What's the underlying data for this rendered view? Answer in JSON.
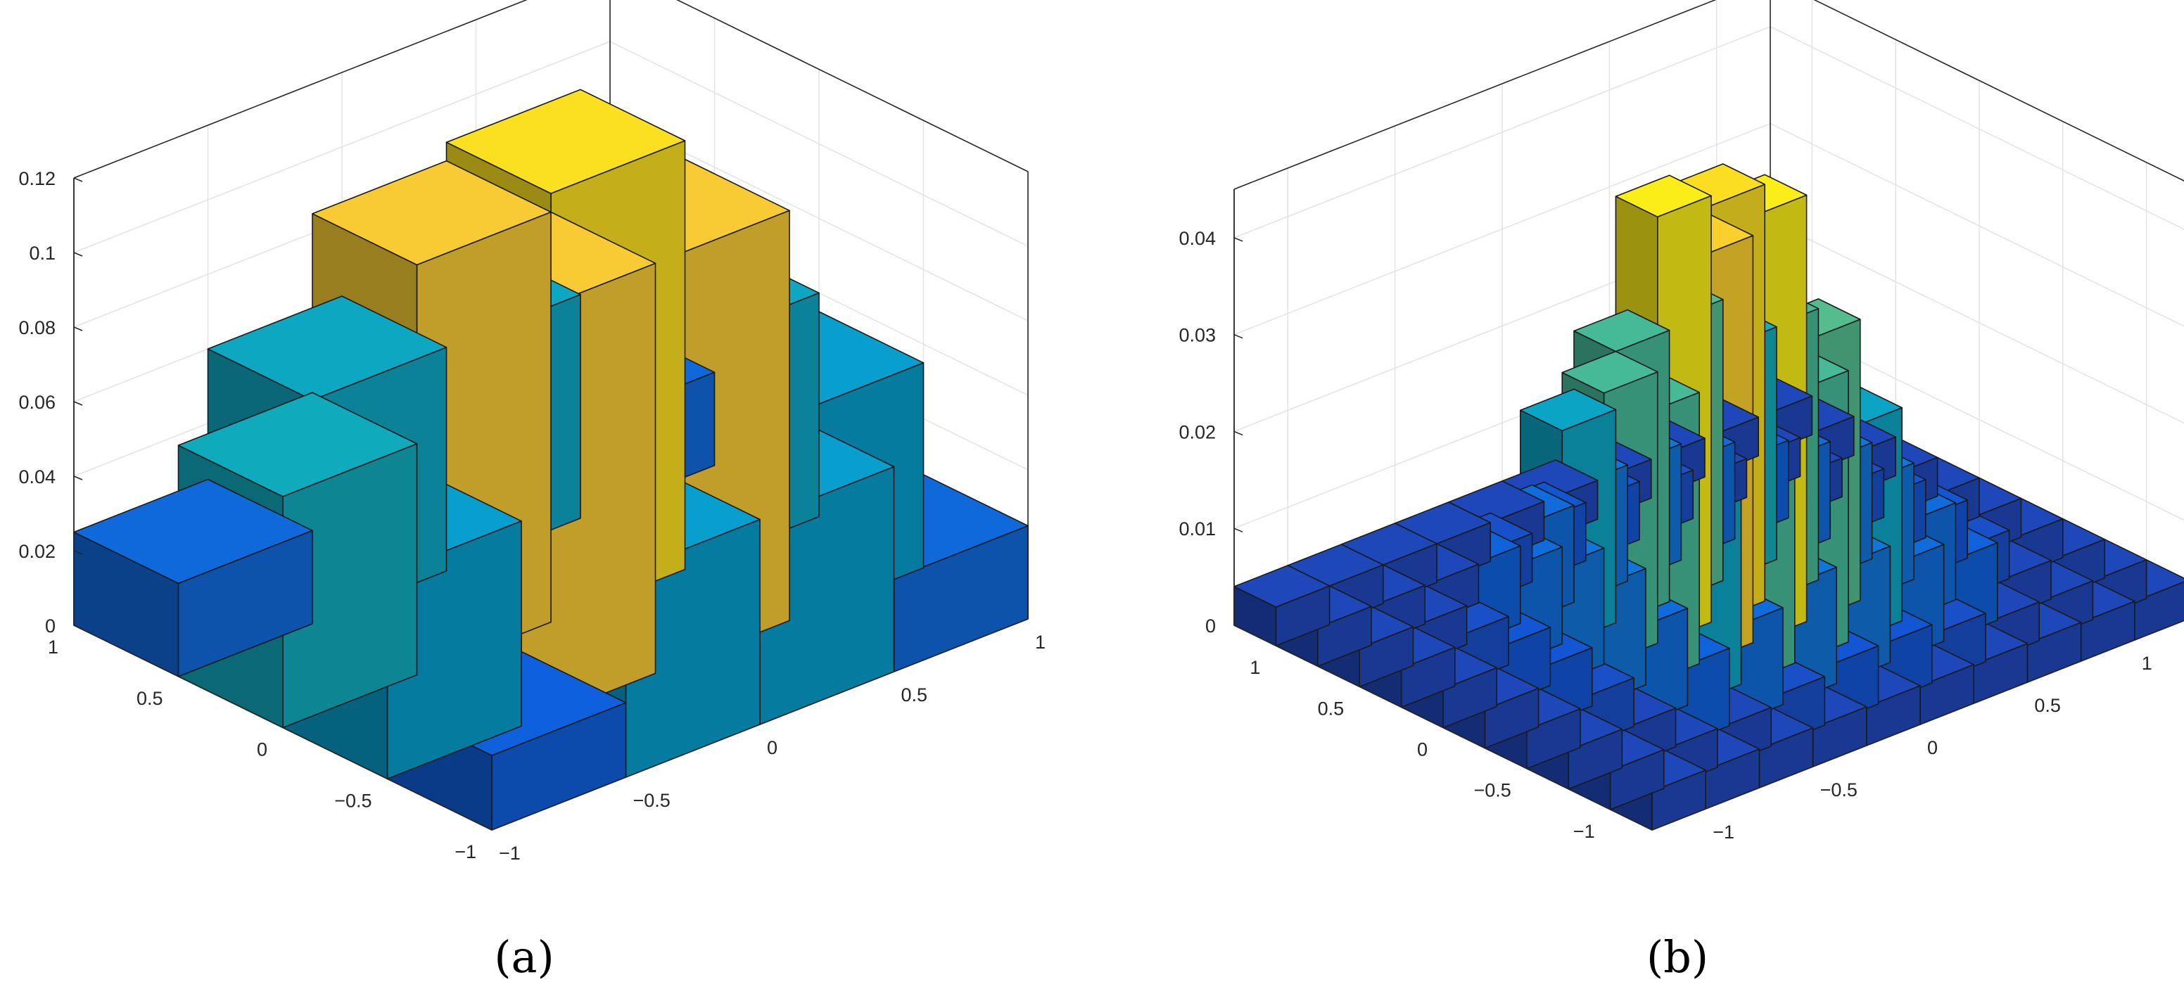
{
  "figure": {
    "captions": [
      "(a)",
      "(b)"
    ]
  },
  "chart_data": [
    {
      "type": "bar3",
      "label": "(a)",
      "colormap": "parula",
      "x_edges": [
        -1,
        -0.5,
        0,
        0.5,
        1
      ],
      "y_edges": [
        -1,
        -0.5,
        0,
        0.5,
        1
      ],
      "values": [
        [
          0.02,
          0.055,
          0.062,
          0.025
        ],
        [
          0.055,
          0.11,
          0.11,
          0.06
        ],
        [
          0.055,
          0.11,
          0.115,
          0.06
        ],
        [
          0.025,
          0.055,
          0.06,
          0.025
        ]
      ],
      "zlim": [
        0,
        0.12
      ],
      "xticks": [
        "−1",
        "−0.5",
        "0",
        "0.5",
        "1"
      ],
      "yticks": [
        "−1",
        "−0.5",
        "0",
        "0.5",
        "1"
      ],
      "zticks": [
        "0",
        "0.02",
        "0.04",
        "0.06",
        "0.08",
        "0.1",
        "0.12"
      ],
      "zvals": [
        0,
        0.02,
        0.04,
        0.06,
        0.08,
        0.1,
        0.12
      ],
      "grid": true,
      "xlabel": "",
      "ylabel": "",
      "zlabel": "",
      "title": ""
    },
    {
      "type": "bar3",
      "label": "(b)",
      "colormap": "parula",
      "x_edges": [
        -1.25,
        -1,
        -0.75,
        -0.5,
        -0.25,
        0,
        0.25,
        0.5,
        0.75,
        1,
        1.25
      ],
      "y_edges": [
        -1.25,
        -1,
        -0.75,
        -0.5,
        -0.25,
        0,
        0.25,
        0.5,
        0.75,
        1,
        1.25
      ],
      "values": [
        [
          0.004,
          0.004,
          0.004,
          0.004,
          0.004,
          0.004,
          0.004,
          0.004,
          0.004,
          0.004
        ],
        [
          0.004,
          0.004,
          0.004,
          0.005,
          0.006,
          0.006,
          0.005,
          0.004,
          0.004,
          0.004
        ],
        [
          0.004,
          0.004,
          0.008,
          0.01,
          0.012,
          0.012,
          0.01,
          0.008,
          0.004,
          0.004
        ],
        [
          0.004,
          0.005,
          0.01,
          0.022,
          0.028,
          0.028,
          0.022,
          0.01,
          0.005,
          0.004
        ],
        [
          0.004,
          0.006,
          0.012,
          0.028,
          0.042,
          0.044,
          0.028,
          0.012,
          0.006,
          0.004
        ],
        [
          0.004,
          0.006,
          0.012,
          0.028,
          0.044,
          0.043,
          0.029,
          0.012,
          0.006,
          0.004
        ],
        [
          0.004,
          0.005,
          0.01,
          0.022,
          0.029,
          0.028,
          0.024,
          0.01,
          0.005,
          0.004
        ],
        [
          0.004,
          0.004,
          0.008,
          0.01,
          0.012,
          0.012,
          0.01,
          0.008,
          0.004,
          0.004
        ],
        [
          0.004,
          0.004,
          0.004,
          0.005,
          0.006,
          0.006,
          0.005,
          0.004,
          0.004,
          0.004
        ],
        [
          0.004,
          0.004,
          0.004,
          0.004,
          0.004,
          0.004,
          0.004,
          0.004,
          0.004,
          0.004
        ]
      ],
      "zlim": [
        0,
        0.045
      ],
      "xticks": [
        "−1",
        "−0.5",
        "0",
        "0.5",
        "1"
      ],
      "yticks": [
        "−1",
        "−0.5",
        "0",
        "0.5",
        "1"
      ],
      "zticks": [
        "0",
        "0.01",
        "0.02",
        "0.03",
        "0.04"
      ],
      "zvals": [
        0,
        0.01,
        0.02,
        0.03,
        0.04
      ],
      "grid": true,
      "xlabel": "",
      "ylabel": "",
      "zlabel": "",
      "title": ""
    }
  ]
}
